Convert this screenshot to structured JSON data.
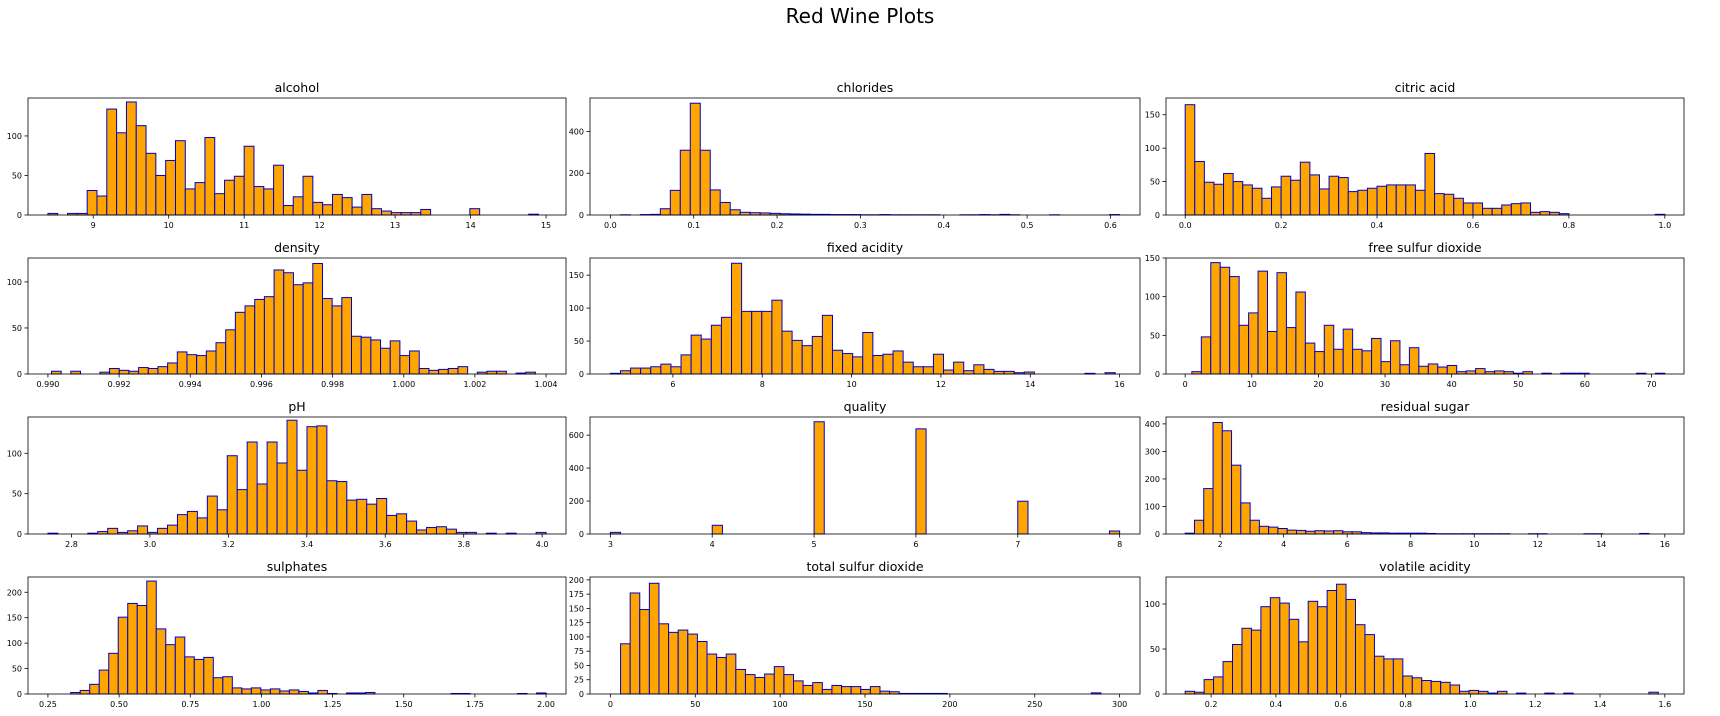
{
  "figure": {
    "title": "Red Wine Plots"
  },
  "colors": {
    "bar_fill": "#FFA500",
    "bar_edge": "#0000CC",
    "axis": "#000000"
  },
  "chart_data": [
    {
      "type": "bar",
      "title": "alcohol",
      "bins": {
        "start": 8.4,
        "end": 14.9,
        "count": 50
      },
      "values": [
        2,
        0,
        2,
        2,
        31,
        24,
        134,
        104,
        143,
        113,
        78,
        50,
        69,
        94,
        33,
        41,
        98,
        27,
        44,
        49,
        87,
        36,
        33,
        63,
        12,
        23,
        49,
        16,
        13,
        26,
        22,
        10,
        26,
        8,
        5,
        3,
        3,
        3,
        7,
        0,
        0,
        0,
        0,
        8,
        0,
        0,
        0,
        0,
        0,
        1
      ],
      "xticks": [
        9,
        10,
        11,
        12,
        13,
        14,
        15
      ],
      "yticks": [
        0,
        50,
        100
      ],
      "ylim": [
        0,
        148
      ]
    },
    {
      "type": "bar",
      "title": "chlorides",
      "bins": {
        "start": 0.012,
        "end": 0.611,
        "count": 50
      },
      "values": [
        1,
        0,
        2,
        3,
        30,
        118,
        310,
        535,
        310,
        120,
        60,
        25,
        13,
        11,
        10,
        8,
        6,
        5,
        4,
        3,
        3,
        2,
        2,
        2,
        1,
        1,
        2,
        1,
        1,
        1,
        1,
        1,
        0,
        0,
        1,
        1,
        2,
        1,
        3,
        1,
        0,
        0,
        0,
        1,
        0,
        0,
        0,
        0,
        0,
        2
      ],
      "xticks": [
        0.0,
        0.1,
        0.2,
        0.3,
        0.4,
        0.5,
        0.6
      ],
      "yticks": [
        0,
        200,
        400
      ],
      "ylim": [
        0,
        560
      ]
    },
    {
      "type": "bar",
      "title": "citric acid",
      "bins": {
        "start": 0.0,
        "end": 1.0,
        "count": 50
      },
      "values": [
        165,
        80,
        49,
        46,
        62,
        50,
        45,
        40,
        25,
        42,
        58,
        52,
        79,
        60,
        39,
        58,
        56,
        35,
        37,
        40,
        43,
        45,
        45,
        45,
        37,
        92,
        32,
        31,
        25,
        18,
        18,
        10,
        10,
        15,
        17,
        18,
        4,
        5,
        4,
        2,
        0,
        0,
        0,
        0,
        0,
        0,
        0,
        0,
        0,
        1
      ],
      "xticks": [
        0.0,
        0.2,
        0.4,
        0.6,
        0.8,
        1.0
      ],
      "yticks": [
        0,
        50,
        100,
        150
      ],
      "ylim": [
        0,
        175
      ]
    },
    {
      "type": "bar",
      "title": "density",
      "bins": {
        "start": 0.9901,
        "end": 1.0037,
        "count": 50
      },
      "values": [
        3,
        0,
        3,
        0,
        0,
        2,
        6,
        4,
        3,
        7,
        6,
        8,
        12,
        24,
        21,
        20,
        25,
        34,
        48,
        67,
        74,
        81,
        84,
        113,
        110,
        97,
        99,
        120,
        82,
        74,
        83,
        41,
        40,
        37,
        28,
        36,
        20,
        25,
        6,
        4,
        5,
        6,
        8,
        0,
        2,
        3,
        3,
        0,
        1,
        2
      ],
      "xticks": [
        0.99,
        0.992,
        0.994,
        0.996,
        0.998,
        1.0,
        1.002,
        1.004
      ],
      "yticks": [
        0,
        50,
        100
      ],
      "ylim": [
        0,
        126
      ]
    },
    {
      "type": "bar",
      "title": "fixed acidity",
      "bins": {
        "start": 4.6,
        "end": 15.9,
        "count": 50
      },
      "values": [
        1,
        5,
        9,
        9,
        11,
        15,
        11,
        29,
        59,
        53,
        74,
        86,
        168,
        95,
        95,
        95,
        112,
        65,
        51,
        43,
        57,
        89,
        36,
        31,
        26,
        63,
        28,
        30,
        35,
        18,
        11,
        11,
        30,
        6,
        18,
        5,
        14,
        7,
        4,
        4,
        2,
        3,
        0,
        0,
        0,
        0,
        0,
        1,
        0,
        2
      ],
      "xticks": [
        6,
        8,
        10,
        12,
        14,
        16
      ],
      "yticks": [
        0,
        50,
        100,
        150
      ],
      "ylim": [
        0,
        176
      ]
    },
    {
      "type": "bar",
      "title": "free sulfur dioxide",
      "bins": {
        "start": 1,
        "end": 72,
        "count": 50
      },
      "values": [
        3,
        48,
        144,
        138,
        126,
        63,
        79,
        133,
        55,
        131,
        60,
        106,
        40,
        29,
        63,
        32,
        58,
        32,
        30,
        46,
        16,
        43,
        12,
        34,
        10,
        13,
        9,
        11,
        3,
        4,
        7,
        3,
        4,
        3,
        1,
        3,
        0,
        1,
        0,
        1,
        1,
        1,
        0,
        0,
        0,
        0,
        0,
        1,
        0,
        1
      ],
      "xticks": [
        0,
        10,
        20,
        30,
        40,
        50,
        60,
        70
      ],
      "yticks": [
        0,
        50,
        100,
        150
      ],
      "ylim": [
        0,
        150
      ]
    },
    {
      "type": "bar",
      "title": "pH",
      "bins": {
        "start": 2.74,
        "end": 4.01,
        "count": 50
      },
      "values": [
        1,
        0,
        0,
        0,
        1,
        3,
        7,
        2,
        4,
        10,
        2,
        7,
        11,
        24,
        28,
        20,
        47,
        30,
        97,
        55,
        114,
        62,
        114,
        88,
        141,
        79,
        133,
        134,
        66,
        65,
        42,
        43,
        37,
        44,
        23,
        25,
        16,
        5,
        8,
        9,
        6,
        2,
        2,
        0,
        1,
        0,
        1,
        0,
        0,
        2
      ],
      "xticks": [
        2.8,
        3.0,
        3.2,
        3.4,
        3.6,
        3.8,
        4.0
      ],
      "yticks": [
        0,
        50,
        100
      ],
      "ylim": [
        0,
        145
      ]
    },
    {
      "type": "bar",
      "title": "quality",
      "bins": {
        "start": 3,
        "end": 8,
        "count": 50
      },
      "values": [
        10,
        0,
        0,
        0,
        0,
        0,
        0,
        0,
        0,
        0,
        53,
        0,
        0,
        0,
        0,
        0,
        0,
        0,
        0,
        0,
        681,
        0,
        0,
        0,
        0,
        0,
        0,
        0,
        0,
        0,
        638,
        0,
        0,
        0,
        0,
        0,
        0,
        0,
        0,
        0,
        199,
        0,
        0,
        0,
        0,
        0,
        0,
        0,
        0,
        18
      ],
      "xticks": [
        3,
        4,
        5,
        6,
        7,
        8
      ],
      "yticks": [
        0,
        200,
        400,
        600
      ],
      "ylim": [
        0,
        710
      ]
    },
    {
      "type": "bar",
      "title": "residual sugar",
      "bins": {
        "start": 0.9,
        "end": 15.5,
        "count": 50
      },
      "values": [
        3,
        50,
        165,
        405,
        375,
        250,
        113,
        50,
        28,
        25,
        20,
        14,
        13,
        10,
        12,
        11,
        12,
        8,
        8,
        5,
        4,
        4,
        3,
        3,
        3,
        3,
        2,
        1,
        1,
        1,
        1,
        1,
        1,
        1,
        1,
        0,
        0,
        1,
        1,
        0,
        0,
        0,
        0,
        1,
        1,
        0,
        0,
        0,
        0,
        2
      ],
      "xticks": [
        2,
        4,
        6,
        8,
        10,
        12,
        14,
        16
      ],
      "yticks": [
        0,
        100,
        200,
        300,
        400
      ],
      "ylim": [
        0,
        425
      ]
    },
    {
      "type": "bar",
      "title": "sulphates",
      "bins": {
        "start": 0.33,
        "end": 2.0,
        "count": 50
      },
      "values": [
        3,
        7,
        19,
        47,
        80,
        151,
        178,
        174,
        222,
        128,
        97,
        112,
        73,
        68,
        72,
        32,
        34,
        12,
        10,
        12,
        8,
        10,
        6,
        8,
        5,
        2,
        7,
        1,
        0,
        2,
        2,
        3,
        0,
        0,
        0,
        0,
        0,
        0,
        0,
        0,
        1,
        1,
        0,
        0,
        0,
        0,
        0,
        1,
        0,
        2
      ],
      "xticks": [
        0.25,
        0.5,
        0.75,
        1.0,
        1.25,
        1.5,
        1.75,
        2.0
      ],
      "yticks": [
        0,
        50,
        100,
        150,
        200
      ],
      "ylim": [
        0,
        230
      ]
    },
    {
      "type": "bar",
      "title": "total sulfur dioxide",
      "bins": {
        "start": 6,
        "end": 289,
        "count": 50
      },
      "values": [
        88,
        177,
        148,
        194,
        123,
        108,
        112,
        105,
        92,
        70,
        64,
        70,
        43,
        34,
        29,
        35,
        48,
        34,
        23,
        15,
        20,
        8,
        15,
        13,
        13,
        8,
        13,
        5,
        4,
        1,
        1,
        1,
        1,
        1,
        0,
        0,
        0,
        0,
        0,
        0,
        0,
        0,
        0,
        0,
        0,
        0,
        0,
        0,
        0,
        2
      ],
      "xticks": [
        0,
        50,
        100,
        150,
        200,
        250,
        300
      ],
      "yticks": [
        0,
        25,
        50,
        75,
        100,
        125,
        150,
        175,
        200
      ],
      "ylim": [
        0,
        205
      ]
    },
    {
      "type": "bar",
      "title": "volatile acidity",
      "bins": {
        "start": 0.12,
        "end": 1.58,
        "count": 50
      },
      "values": [
        3,
        2,
        16,
        19,
        36,
        55,
        73,
        71,
        97,
        107,
        101,
        83,
        58,
        103,
        97,
        115,
        122,
        105,
        77,
        66,
        42,
        39,
        39,
        20,
        18,
        15,
        14,
        13,
        10,
        3,
        4,
        3,
        1,
        3,
        0,
        1,
        0,
        0,
        1,
        0,
        1,
        0,
        0,
        0,
        0,
        0,
        0,
        0,
        0,
        2
      ],
      "xticks": [
        0.2,
        0.4,
        0.6,
        0.8,
        1.0,
        1.2,
        1.4,
        1.6
      ],
      "yticks": [
        0,
        50,
        100
      ],
      "ylim": [
        0,
        130
      ]
    }
  ]
}
